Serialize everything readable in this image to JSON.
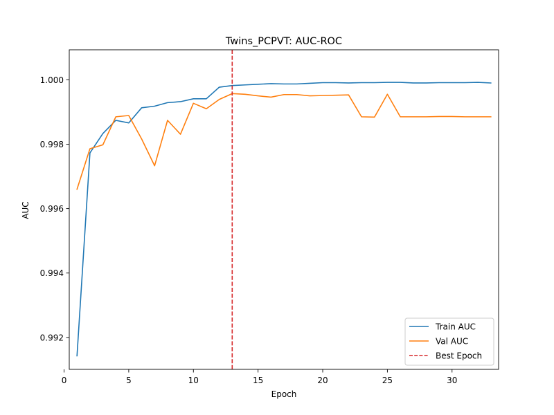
{
  "chart_data": {
    "type": "line",
    "title": "Twins_PCPVT: AUC-ROC",
    "xlabel": "Epoch",
    "ylabel": "AUC",
    "xlim": [
      0.4,
      33.6
    ],
    "ylim": [
      0.99101,
      1.00093
    ],
    "xticks": [
      0,
      5,
      10,
      15,
      20,
      25,
      30
    ],
    "yticks": [
      0.992,
      0.994,
      0.996,
      0.998,
      1.0
    ],
    "ytick_labels": [
      "0.992",
      "0.994",
      "0.996",
      "0.998",
      "1.000"
    ],
    "grid": false,
    "legend_position": "lower-right",
    "x": [
      1,
      2,
      3,
      4,
      5,
      6,
      7,
      8,
      9,
      10,
      11,
      12,
      13,
      14,
      15,
      16,
      17,
      18,
      19,
      20,
      21,
      22,
      23,
      24,
      25,
      26,
      27,
      28,
      29,
      30,
      31,
      32,
      33
    ],
    "series": [
      {
        "name": "Train AUC",
        "color": "#1f77b4",
        "values": [
          0.99143,
          0.99773,
          0.99833,
          0.99874,
          0.99866,
          0.99913,
          0.99918,
          0.99929,
          0.99932,
          0.99941,
          0.99941,
          0.99977,
          0.99982,
          0.99984,
          0.99986,
          0.99988,
          0.99987,
          0.99987,
          0.99989,
          0.99991,
          0.99991,
          0.9999,
          0.99991,
          0.99991,
          0.99992,
          0.99992,
          0.9999,
          0.9999,
          0.99991,
          0.99991,
          0.99991,
          0.99992,
          0.9999
        ]
      },
      {
        "name": "Val AUC",
        "color": "#ff7f0e",
        "values": [
          0.9966,
          0.99786,
          0.99798,
          0.99885,
          0.99889,
          0.99816,
          0.99733,
          0.99874,
          0.99831,
          0.99927,
          0.9991,
          0.99939,
          0.99957,
          0.99955,
          0.9995,
          0.99946,
          0.99954,
          0.99954,
          0.9995,
          0.99951,
          0.99952,
          0.99953,
          0.99885,
          0.99884,
          0.99955,
          0.99885,
          0.99885,
          0.99885,
          0.99886,
          0.99886,
          0.99885,
          0.99885,
          0.99885
        ]
      }
    ],
    "vline": {
      "name": "Best Epoch",
      "x": 13,
      "color": "#d62728",
      "style": "dashed"
    }
  }
}
